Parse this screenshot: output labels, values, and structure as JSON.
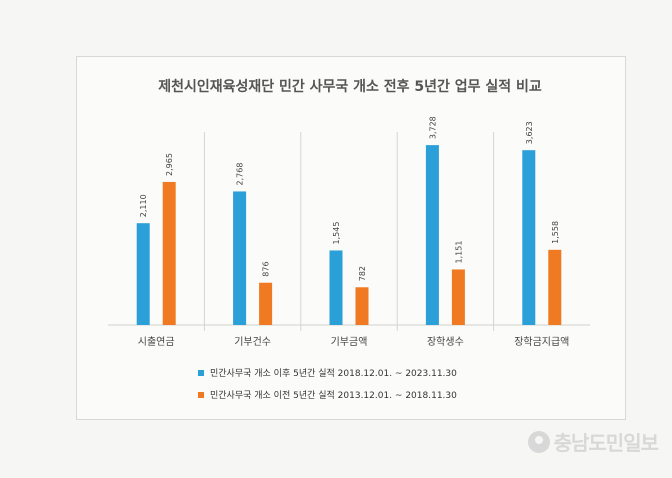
{
  "chart_data": {
    "type": "bar",
    "title": "제천시인재육성재단 민간 사무국 개소 전후 5년간 업무 실적 비교",
    "categories": [
      "시출연금",
      "기부건수",
      "기부금액",
      "장학생수",
      "장학금지급액"
    ],
    "series": [
      {
        "name": "민간사무국 개소 이후 5년간 실적 2018.12.01. ~ 2023.11.30",
        "values": [
          2110,
          2768,
          1545,
          3728,
          3623
        ],
        "labels": [
          "2,110",
          "2,768",
          "1,545",
          "3,728",
          "3,623"
        ],
        "color": "#2b9fd8"
      },
      {
        "name": "민간사무국 개소 이전 5년간 실적 2013.12.01. ~ 2018.11.30",
        "values": [
          2965,
          876,
          782,
          1151,
          1558
        ],
        "labels": [
          "2,965",
          "876",
          "782",
          "1,151",
          "1,558"
        ],
        "color": "#f07a22"
      }
    ],
    "ylim": [
      0,
      4000
    ],
    "grid": false,
    "legend": "bottom"
  },
  "watermark": "충남도민일보"
}
